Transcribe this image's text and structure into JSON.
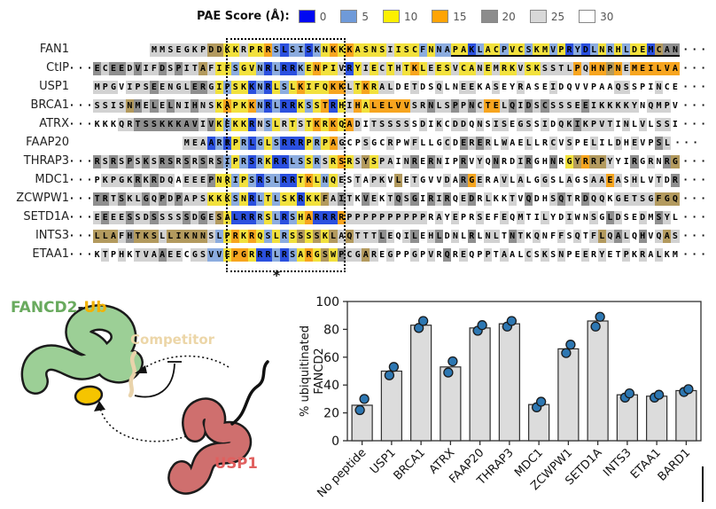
{
  "figure": {
    "legend": {
      "title": "PAE Score (Å):",
      "entries": [
        {
          "value": "0",
          "color": "#0009f2"
        },
        {
          "value": "5",
          "color": "#6f9ad9"
        },
        {
          "value": "10",
          "color": "#fdf000"
        },
        {
          "value": "15",
          "color": "#ffa405"
        },
        {
          "value": "20",
          "color": "#8c8c8c"
        },
        {
          "value": "25",
          "color": "#d8d8d8"
        },
        {
          "value": "30",
          "color": "#ffffff"
        }
      ]
    },
    "alignment": {
      "ellipsis": "· · ·",
      "box_annotation": "*",
      "palette": {
        "B": "#2b50df",
        "b": "#8cacdf",
        "Y": "#f2e13d",
        "O": "#f7a51f",
        "G": "#8f8f8f",
        "g": "#d2d2d2",
        "w": "#ffffff",
        "t": "#b39a5e"
      },
      "rows": [
        {
          "name": "FAN1",
          "left_dots": false,
          "offset": 7,
          "seq": "MMSEGKPDDKKRPRRSLSISKNKKKASNSIISCFNNAPAKLACPVCSKMVPRYDLNRHLDEMCAN",
          "colors": "gggggggttYYgYYObBbbBbYOYOYYYYgYYYbYbbYYBbYYbYYbYYbYBbBbYbYbYYBtGG",
          "underline": {
            "start": 37,
            "length": 28
          }
        },
        {
          "name": "CtIP",
          "left_dots": true,
          "offset": 0,
          "seq": "ECEEDVIFDSPITAFIFSGVNRLRRKENPIVRYIECTHTKLEESVCANEMRKVSKSSTLPQHNPNEMEILVA",
          "colors": "GgGGgGggGgGggtgYYbYYbBbBBbYOYYgBYgYgYgYOYgYYgYYgYgYYgYYggggOgOOtOgOOOOOO"
        },
        {
          "name": "USP1",
          "left_dots": false,
          "offset": 0,
          "seq": "MPGVIPSEENGLERGIPSKKNRLSLKIFQKKLTKRALDETDSQLNEEKASEYRASEIDQVVPAAQSSPINCE",
          "colors": "gggwgggGggggGGgYbYYBbBYbYOYYYOOgYOYggwwgwwgwwggwwgwwgwwwgwwwwwwwggwwwgww"
        },
        {
          "name": "BRCA1",
          "left_dots": true,
          "offset": 0,
          "seq": "SSISNMELELNIHNSKAPKKNRLRRKSSTRHIHALELVVSRNLSPPNCTELQIDSCSSSEEIKKKKYNQMPV",
          "colors": "ggggtGgGgGggGggYOYYObBbBBYbYOBYgOYOOOOOggGggGgGgOOgGgGgGggggGggggggwgggw"
        },
        {
          "name": "ATRX",
          "left_dots": true,
          "offset": 0,
          "seq": "KKKQRTSSKKKAVIVKEKKRNSLRTSTKRKQADITSSSSSDIKCDDQNSISEGSSIDQKIKPVTINLVLSSI",
          "colors": "wwwggGGGGGGGGgGYbYYBgbYgYgYOYOYOgwgggggwgwgwggwgwggwggwgwggGggggwgwgwggw"
        },
        {
          "name": "FAAP20",
          "left_dots": false,
          "offset": 11,
          "seq": "MEAARRPRLGLSRRRPRPAGCPSGCRPWFLLGCDERERLWAELLRCVSPELILDHEVPSL",
          "colors": "gggBbBYbBbYbBBBYbYOgwwgwwgwwgwwwgwGgGgwgwwgwwgwgwwgwwgwgwwGgg"
        },
        {
          "name": "THRAP3",
          "left_dots": true,
          "offset": 0,
          "seq": "RSRSPSKSRSRSRSRSIPRSRKRRLSSRSRSRSYSPAINRERNIPRVYQNRDIRGHNRGYRRPYYIRGRNRG",
          "colors": "GgGgGgGgGGgGgGgGbYbBbYBBbbYbgYOYgtYggwgGwGgwwGwgwGwwgGwwGwYtOttgwwGwgwGt"
        },
        {
          "name": "MDC1",
          "left_dots": true,
          "offset": 0,
          "seq": "PKPGKRKRDQAEEEPNRIPSRSLRRTKLNQESTAPKVLETGVVDARGERAVLALGGSLAGSAAEASHLVTDR",
          "colors": "wggggGgGggwgggGYYbYbBbbBBYOYbYgwgwggwtwgwwwgwGOgwwgwgwwgwwgwwggOgwgwwgwG"
        },
        {
          "name": "ZCWPW1",
          "left_dots": true,
          "offset": 0,
          "seq": "TRTSKLGQPDPAPSKKKSNRLTLSKRKKFAITKVEKTQSGIRIRQEDRLKKTVQDHSQTRDQQKGETSGFGQ",
          "colors": "GGgGggGgGgGgggYYYbYBbYbYYBYYtgGgwGgwgGgGwGgGwgGwgwwgwGwwgGgwGggwgggggttt"
        },
        {
          "name": "SETD1A",
          "left_dots": true,
          "offset": 0,
          "seq": "EEEESSDSSSSSDGESALRRRSLRSHARRRRPPPPPPPPPPRAYEPRSEFEQMTILYDIWNSGLDSEDMSYL",
          "colors": "gGggGggGgggGgGgtYBBBbYbBbYOBBBOggggggggggwgwgwwgwwgwgwwgwwgwwgwGgwwgwGgw"
        },
        {
          "name": "INTS3",
          "left_dots": true,
          "offset": 0,
          "seq": "LLAFHTKSLLIKNNSLPRKRQSLRSSSSKLAQTTTLEQILEHLDNLRLNLTNTKQNFFSQTFLQALQHVQAS",
          "colors": "tttgGtttgtttttgbYOYOYbYbYtYtYtgtgggGgwgGwgGwgwGwggwGgwgwwgwgwgtgGgwGwgtg"
        },
        {
          "name": "ETAA1",
          "left_dots": true,
          "offset": 0,
          "seq": "KTPHKTVAAEECGSVVEPGRRRLRSARGSWPCGAREGPPGPVRQREQPPTAALCSKSNPEERYETPKRALKM",
          "colors": "wgwgwgggGggwggbbYOOYBBbBbYOYtYGggtgwgwwgwgwGwgwwgwgwwgwgwgwwgwgwwgwgwgww"
        }
      ]
    },
    "cartoon": {
      "labels": {
        "fancd2": "FANCD2",
        "dash": "-",
        "ub": "Ub",
        "competitor": "Competitor",
        "usp1": "USP1"
      },
      "colors": {
        "fancd2_label": "#69aa5e",
        "fancd2_blob": "#9ccf96",
        "ub_label": "#f2b200",
        "ub_blob": "#f5c400",
        "competitor_label": "#ecd6a8",
        "competitor_line": "#e9d3ab",
        "usp1_label": "#e0605f",
        "usp1_blob": "#cf6f6e",
        "outline": "#1b1b1b"
      }
    }
  },
  "chart_data": {
    "type": "bar",
    "categories": [
      "No peptide",
      "USP1",
      "BRCA1",
      "ATRX",
      "FAAP20",
      "THRAP3",
      "MDC1",
      "ZCWPW1",
      "SETD1A",
      "INTS3",
      "ETAA1",
      "BARD1"
    ],
    "values": [
      25.5,
      50,
      83,
      53,
      81,
      84,
      26,
      66,
      86,
      33,
      32,
      36
    ],
    "points": [
      [
        22,
        30
      ],
      [
        47,
        53
      ],
      [
        81,
        86
      ],
      [
        49,
        57
      ],
      [
        79,
        83
      ],
      [
        82,
        86
      ],
      [
        24,
        28
      ],
      [
        63,
        69
      ],
      [
        82,
        89
      ],
      [
        31,
        34
      ],
      [
        31,
        33
      ],
      [
        35,
        37
      ]
    ],
    "title": "",
    "xlabel": "",
    "ylabel": "% ubiquitinated FANCD2",
    "ylabel_lines": [
      "% ubiquitinated",
      "FANCD2"
    ],
    "ylim": [
      0,
      100
    ],
    "yticks": [
      0,
      20,
      40,
      60,
      80,
      100
    ],
    "grid": false,
    "legend_position": "none",
    "bar_color": "#dcdcdc",
    "bar_edge": "#2f2f2f",
    "point_color": "#2d77b2",
    "point_edge": "#1a1a1a"
  }
}
